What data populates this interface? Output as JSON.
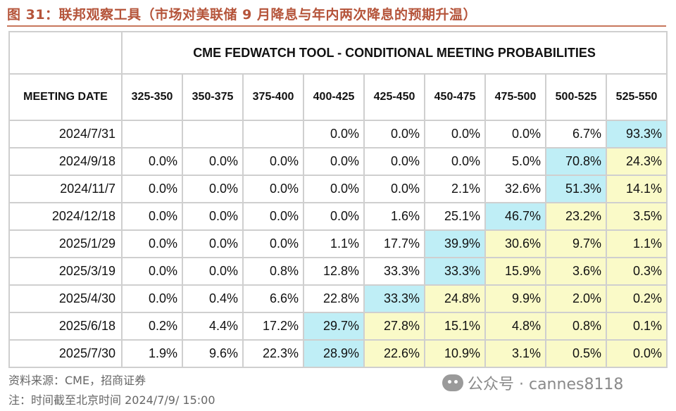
{
  "figure": {
    "title": "图 31：联邦观察工具（市场对美联储 9 月降息与年内两次降息的预期升温）"
  },
  "table": {
    "title": "CME FEDWATCH TOOL - CONDITIONAL MEETING PROBABILITIES",
    "date_header": "MEETING DATE",
    "columns": [
      "325-350",
      "350-375",
      "375-400",
      "400-425",
      "425-450",
      "450-475",
      "475-500",
      "500-525",
      "525-550"
    ],
    "rows": [
      {
        "date": "2024/7/31",
        "cells": [
          "",
          "",
          "",
          "0.0%",
          "0.0%",
          "0.0%",
          "0.0%",
          "6.7%",
          "93.3%"
        ],
        "hl": [
          "",
          "",
          "",
          "",
          "",
          "",
          "",
          "",
          "blue"
        ]
      },
      {
        "date": "2024/9/18",
        "cells": [
          "0.0%",
          "0.0%",
          "0.0%",
          "0.0%",
          "0.0%",
          "0.0%",
          "5.0%",
          "70.8%",
          "24.3%"
        ],
        "hl": [
          "",
          "",
          "",
          "",
          "",
          "",
          "",
          "blue",
          "yellow"
        ]
      },
      {
        "date": "2024/11/7",
        "cells": [
          "0.0%",
          "0.0%",
          "0.0%",
          "0.0%",
          "0.0%",
          "2.1%",
          "32.6%",
          "51.3%",
          "14.1%"
        ],
        "hl": [
          "",
          "",
          "",
          "",
          "",
          "",
          "",
          "blue",
          "yellow"
        ]
      },
      {
        "date": "2024/12/18",
        "cells": [
          "0.0%",
          "0.0%",
          "0.0%",
          "0.0%",
          "1.6%",
          "25.1%",
          "46.7%",
          "23.2%",
          "3.5%"
        ],
        "hl": [
          "",
          "",
          "",
          "",
          "",
          "",
          "blue",
          "yellow",
          "yellow"
        ]
      },
      {
        "date": "2025/1/29",
        "cells": [
          "0.0%",
          "0.0%",
          "0.0%",
          "1.1%",
          "17.7%",
          "39.9%",
          "30.6%",
          "9.7%",
          "1.1%"
        ],
        "hl": [
          "",
          "",
          "",
          "",
          "",
          "blue",
          "yellow",
          "yellow",
          "yellow"
        ]
      },
      {
        "date": "2025/3/19",
        "cells": [
          "0.0%",
          "0.0%",
          "0.8%",
          "12.8%",
          "33.3%",
          "33.3%",
          "15.9%",
          "3.6%",
          "0.3%"
        ],
        "hl": [
          "",
          "",
          "",
          "",
          "",
          "blue",
          "yellow",
          "yellow",
          "yellow"
        ]
      },
      {
        "date": "2025/4/30",
        "cells": [
          "0.0%",
          "0.4%",
          "6.6%",
          "22.8%",
          "33.3%",
          "24.8%",
          "9.9%",
          "2.0%",
          "0.2%"
        ],
        "hl": [
          "",
          "",
          "",
          "",
          "blue",
          "yellow",
          "yellow",
          "yellow",
          "yellow"
        ]
      },
      {
        "date": "2025/6/18",
        "cells": [
          "0.2%",
          "4.4%",
          "17.2%",
          "29.7%",
          "27.8%",
          "15.1%",
          "4.8%",
          "0.8%",
          "0.1%"
        ],
        "hl": [
          "",
          "",
          "",
          "blue",
          "yellow",
          "yellow",
          "yellow",
          "yellow",
          "yellow"
        ]
      },
      {
        "date": "2025/7/30",
        "cells": [
          "1.9%",
          "9.6%",
          "22.3%",
          "28.9%",
          "22.6%",
          "10.9%",
          "3.1%",
          "0.5%",
          "0.0%"
        ],
        "hl": [
          "",
          "",
          "",
          "blue",
          "yellow",
          "yellow",
          "yellow",
          "yellow",
          "yellow"
        ]
      }
    ]
  },
  "footer": {
    "source": "资料来源：CME，招商证券",
    "note": "注：时间截至北京时间 2024/7/9/ 15:00"
  },
  "watermark": {
    "text": "公众号 · cannes8118"
  },
  "colors": {
    "title": "#b5543a",
    "highlight_blue": "#bfeef6",
    "highlight_yellow": "#fafac8",
    "grid": "#cfcfcf"
  }
}
